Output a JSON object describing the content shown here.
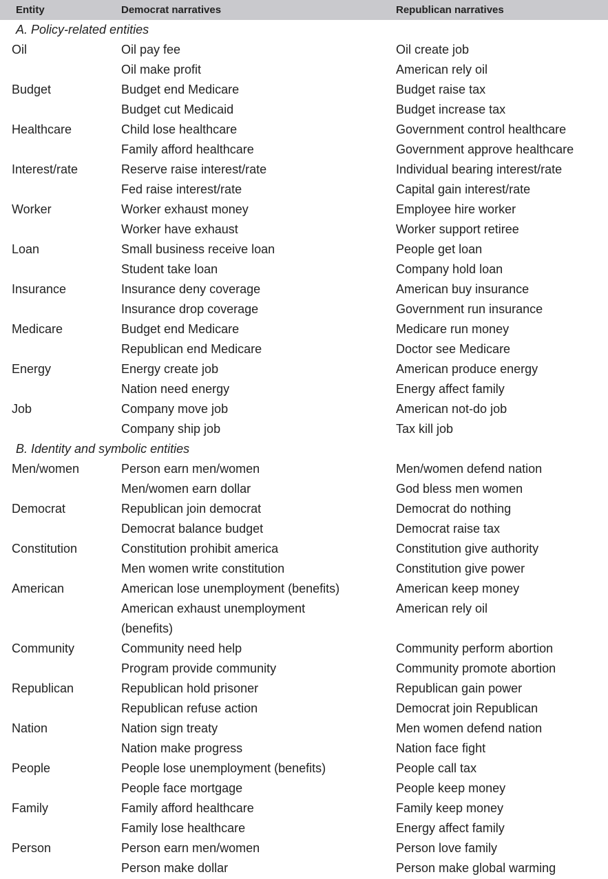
{
  "header": [
    "Entity",
    "Democrat narratives",
    "Republican narratives"
  ],
  "sections": [
    {
      "title": "A. Policy-related entities",
      "entities": [
        {
          "name": "Oil",
          "rows": [
            [
              "Oil pay fee",
              "Oil create job"
            ],
            [
              "Oil make profit",
              "American rely oil"
            ]
          ]
        },
        {
          "name": "Budget",
          "rows": [
            [
              "Budget end Medicare",
              "Budget raise tax"
            ],
            [
              "Budget cut Medicaid",
              "Budget increase tax"
            ]
          ]
        },
        {
          "name": "Healthcare",
          "rows": [
            [
              "Child lose healthcare",
              "Government control healthcare"
            ],
            [
              "Family afford healthcare",
              "Government approve healthcare"
            ]
          ]
        },
        {
          "name": "Interest/rate",
          "rows": [
            [
              "Reserve raise interest/rate",
              "Individual bearing interest/rate"
            ],
            [
              "Fed raise interest/rate",
              "Capital gain interest/rate"
            ]
          ]
        },
        {
          "name": "Worker",
          "rows": [
            [
              "Worker exhaust money",
              "Employee hire worker"
            ],
            [
              "Worker have exhaust",
              "Worker support retiree"
            ]
          ]
        },
        {
          "name": "Loan",
          "rows": [
            [
              "Small business receive loan",
              "People get loan"
            ],
            [
              "Student take loan",
              "Company hold loan"
            ]
          ]
        },
        {
          "name": "Insurance",
          "rows": [
            [
              "Insurance deny coverage",
              "American buy insurance"
            ],
            [
              "Insurance drop coverage",
              "Government run insurance"
            ]
          ]
        },
        {
          "name": "Medicare",
          "rows": [
            [
              "Budget end Medicare",
              "Medicare run money"
            ],
            [
              "Republican end Medicare",
              "Doctor see Medicare"
            ]
          ]
        },
        {
          "name": "Energy",
          "rows": [
            [
              "Energy create job",
              "American produce energy"
            ],
            [
              "Nation need energy",
              "Energy affect family"
            ]
          ]
        },
        {
          "name": "Job",
          "rows": [
            [
              "Company move job",
              "American not-do job"
            ],
            [
              "Company ship job",
              "Tax kill job"
            ]
          ]
        }
      ]
    },
    {
      "title": "B. Identity and symbolic entities",
      "entities": [
        {
          "name": "Men/women",
          "rows": [
            [
              "Person earn men/women",
              "Men/women defend nation"
            ],
            [
              "Men/women earn dollar",
              "God bless men women"
            ]
          ]
        },
        {
          "name": "Democrat",
          "rows": [
            [
              "Republican join democrat",
              "Democrat do nothing"
            ],
            [
              "Democrat balance budget",
              "Democrat raise tax"
            ]
          ]
        },
        {
          "name": "Constitution",
          "rows": [
            [
              "Constitution prohibit america",
              "Constitution give authority"
            ],
            [
              "Men women write constitution",
              "Constitution give power"
            ]
          ]
        },
        {
          "name": "American",
          "rows": [
            [
              "American lose unemployment (benefits)",
              "American keep money"
            ],
            [
              "American exhaust unemployment (benefits)",
              "American rely oil"
            ]
          ]
        },
        {
          "name": "Community",
          "rows": [
            [
              "Community need help",
              "Community perform abortion"
            ],
            [
              "Program provide community",
              "Community promote abortion"
            ]
          ]
        },
        {
          "name": "Republican",
          "rows": [
            [
              "Republican hold prisoner",
              "Republican gain power"
            ],
            [
              "Republican refuse action",
              "Democrat join Republican"
            ]
          ]
        },
        {
          "name": "Nation",
          "rows": [
            [
              "Nation sign treaty",
              "Men women defend nation"
            ],
            [
              "Nation make progress",
              "Nation face fight"
            ]
          ]
        },
        {
          "name": "People",
          "rows": [
            [
              "People lose unemployment (benefits)",
              "People call tax"
            ],
            [
              "People face mortgage",
              "People keep money"
            ]
          ]
        },
        {
          "name": "Family",
          "rows": [
            [
              "Family afford healthcare",
              "Family keep money"
            ],
            [
              "Family lose healthcare",
              "Energy affect family"
            ]
          ]
        },
        {
          "name": "Person",
          "rows": [
            [
              "Person earn men/women",
              "Person love family"
            ],
            [
              "Person make dollar",
              "Person make global warming"
            ]
          ]
        }
      ]
    }
  ]
}
